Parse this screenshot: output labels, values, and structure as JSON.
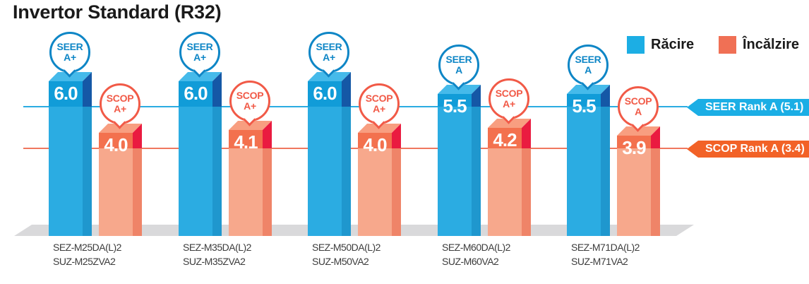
{
  "title": "Invertor Standard (R32)",
  "legend": {
    "items": [
      {
        "label": "Răcire",
        "color": "#1CAEE4"
      },
      {
        "label": "Încălzire",
        "color": "#F07055"
      }
    ]
  },
  "rank_tags": [
    {
      "label": "SEER Rank A (5.1)",
      "tag_color": "#1BAEE5",
      "line_color": "#2BACE2"
    },
    {
      "label": "SCOP Rank A (3.4)",
      "tag_color": "#F26227",
      "line_color": "#F0785F"
    }
  ],
  "chart_data": {
    "type": "bar",
    "title": "Invertor Standard (R32)",
    "categories": [
      [
        "SEZ-M25DA(L)2",
        "SUZ-M25ZVA2"
      ],
      [
        "SEZ-M35DA(L)2",
        "SUZ-M35ZVA2"
      ],
      [
        "SEZ-M50DA(L)2",
        "SUZ-M50VA2"
      ],
      [
        "SEZ-M60DA(L)2",
        "SUZ-M60VA2"
      ],
      [
        "SEZ-M71DA(L)2",
        "SUZ-M71VA2"
      ]
    ],
    "series": [
      {
        "name": "Răcire",
        "metric": "SEER",
        "values": [
          6.0,
          6.0,
          6.0,
          5.5,
          5.5
        ],
        "badges": [
          [
            "SEER",
            "A+"
          ],
          [
            "SEER",
            "A+"
          ],
          [
            "SEER",
            "A+"
          ],
          [
            "SEER",
            "A"
          ],
          [
            "SEER",
            "A"
          ]
        ]
      },
      {
        "name": "Încălzire",
        "metric": "SCOP",
        "values": [
          4.0,
          4.1,
          4.0,
          4.2,
          3.9
        ],
        "badges": [
          [
            "SCOP",
            "A+"
          ],
          [
            "SCOP",
            "A+"
          ],
          [
            "SCOP",
            "A+"
          ],
          [
            "SCOP",
            "A+"
          ],
          [
            "SCOP",
            "A"
          ]
        ]
      }
    ],
    "reference_lines": [
      {
        "label": "SEER Rank A",
        "value": 5.1
      },
      {
        "label": "SCOP Rank A",
        "value": 3.4
      }
    ],
    "ylim": [
      0,
      7
    ],
    "legend_position": "top-right",
    "grid": false
  },
  "colors": {
    "seer": {
      "front": "#119CD8",
      "front_light": "#2BACE2",
      "side": "#1558A6",
      "side_light": "#1F97CE",
      "top": "#45BAEA",
      "badge": "#0E86C6"
    },
    "scop": {
      "front": "#F3714E",
      "front_light": "#F7A88C",
      "side": "#EA1B40",
      "side_light": "#EF8468",
      "top": "#F89E80",
      "badge": "#F15A47"
    },
    "floor": "#D9D9DB",
    "label_text": "#3C3C3C",
    "title_text": "#1A1A1A"
  }
}
